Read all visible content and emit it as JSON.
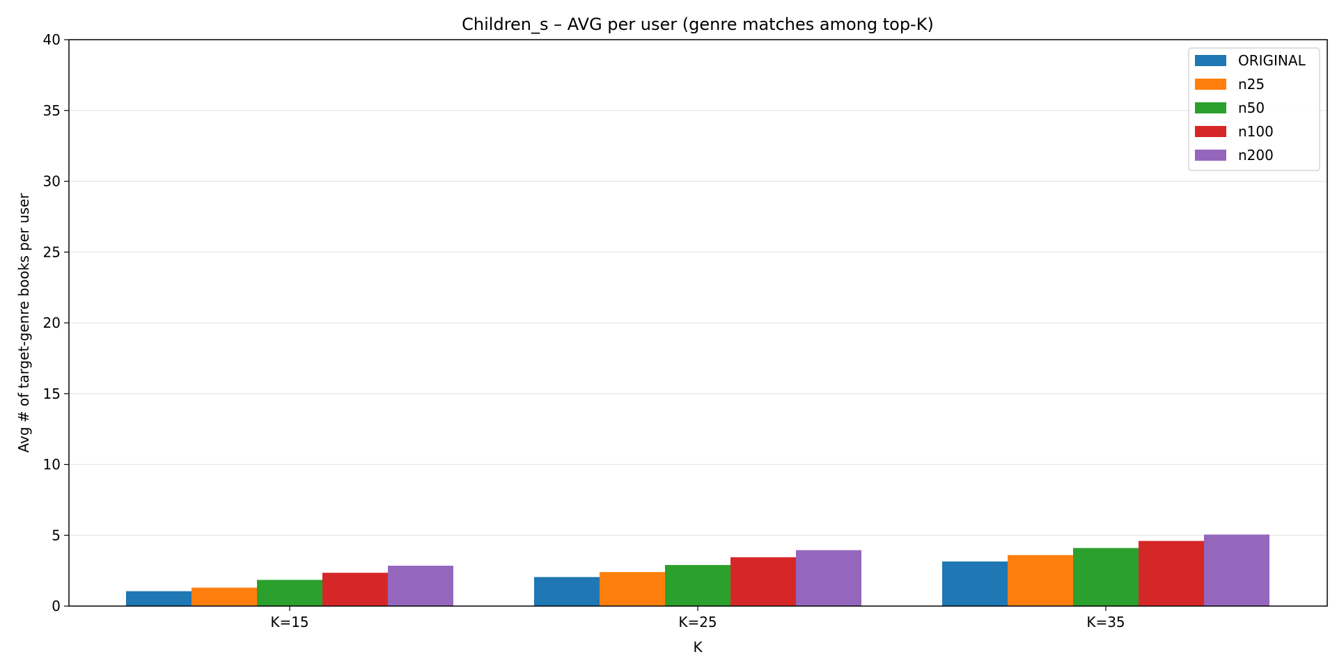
{
  "chart_data": {
    "type": "bar",
    "title": "Children_s – AVG per user (genre matches among top-K)",
    "xlabel": "K",
    "ylabel": "Avg # of target-genre books per user",
    "categories": [
      "K=15",
      "K=25",
      "K=35"
    ],
    "ylim": [
      0,
      40
    ],
    "yticks": [
      0,
      5,
      10,
      15,
      20,
      25,
      30,
      35,
      40
    ],
    "grid": "y",
    "legend_position": "top-right",
    "series": [
      {
        "name": "ORIGINAL",
        "color": "#1f77b4",
        "values": [
          1.05,
          2.05,
          3.15
        ]
      },
      {
        "name": "n25",
        "color": "#ff7f0e",
        "values": [
          1.3,
          2.4,
          3.6
        ]
      },
      {
        "name": "n50",
        "color": "#2ca02c",
        "values": [
          1.85,
          2.9,
          4.1
        ]
      },
      {
        "name": "n100",
        "color": "#d62728",
        "values": [
          2.35,
          3.45,
          4.6
        ]
      },
      {
        "name": "n200",
        "color": "#9467bd",
        "values": [
          2.85,
          3.95,
          5.05
        ]
      }
    ]
  }
}
